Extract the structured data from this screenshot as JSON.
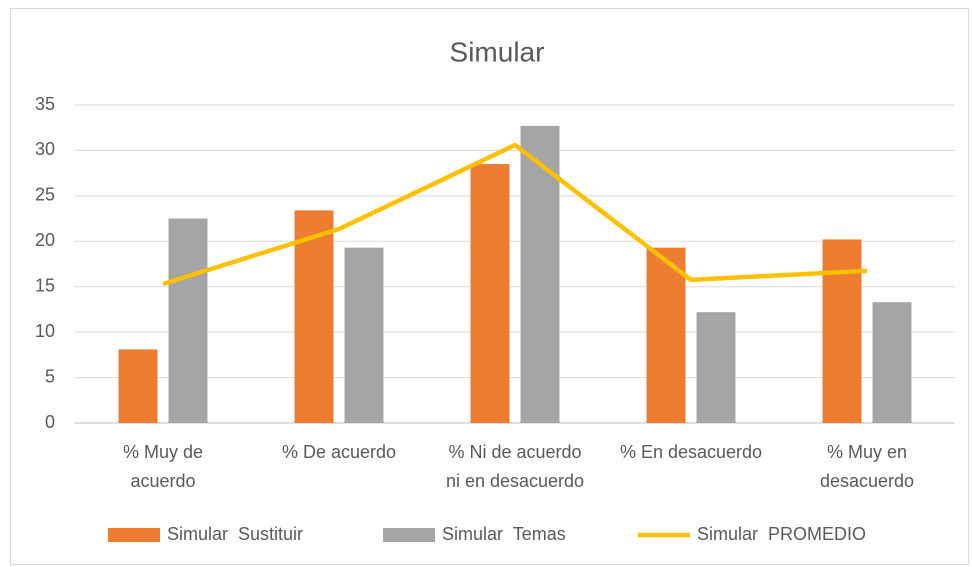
{
  "chart_data": {
    "type": "bar_line",
    "title": "Simular",
    "categories": [
      "% Muy de\nacuerdo",
      "% De acuerdo",
      "% Ni de acuerdo\nni en desacuerdo",
      "% En desacuerdo",
      "% Muy en\ndesacuerdo"
    ],
    "series": [
      {
        "name": "Simular  Sustituir",
        "color": "#ed7d31",
        "kind": "bar",
        "values": [
          8.1,
          23.4,
          28.5,
          19.3,
          20.2
        ]
      },
      {
        "name": "Simular  Temas",
        "color": "#a5a5a5",
        "kind": "bar",
        "values": [
          22.5,
          19.3,
          32.7,
          12.2,
          13.3
        ]
      },
      {
        "name": "Simular  PROMEDIO",
        "color": "#ffc000",
        "kind": "line",
        "values": [
          15.3,
          21.35,
          30.6,
          15.75,
          16.75
        ]
      }
    ],
    "ylim": [
      0,
      35
    ],
    "yticks": [
      0,
      5,
      10,
      15,
      20,
      25,
      30,
      35
    ],
    "grid": true,
    "legend": "bottom"
  }
}
